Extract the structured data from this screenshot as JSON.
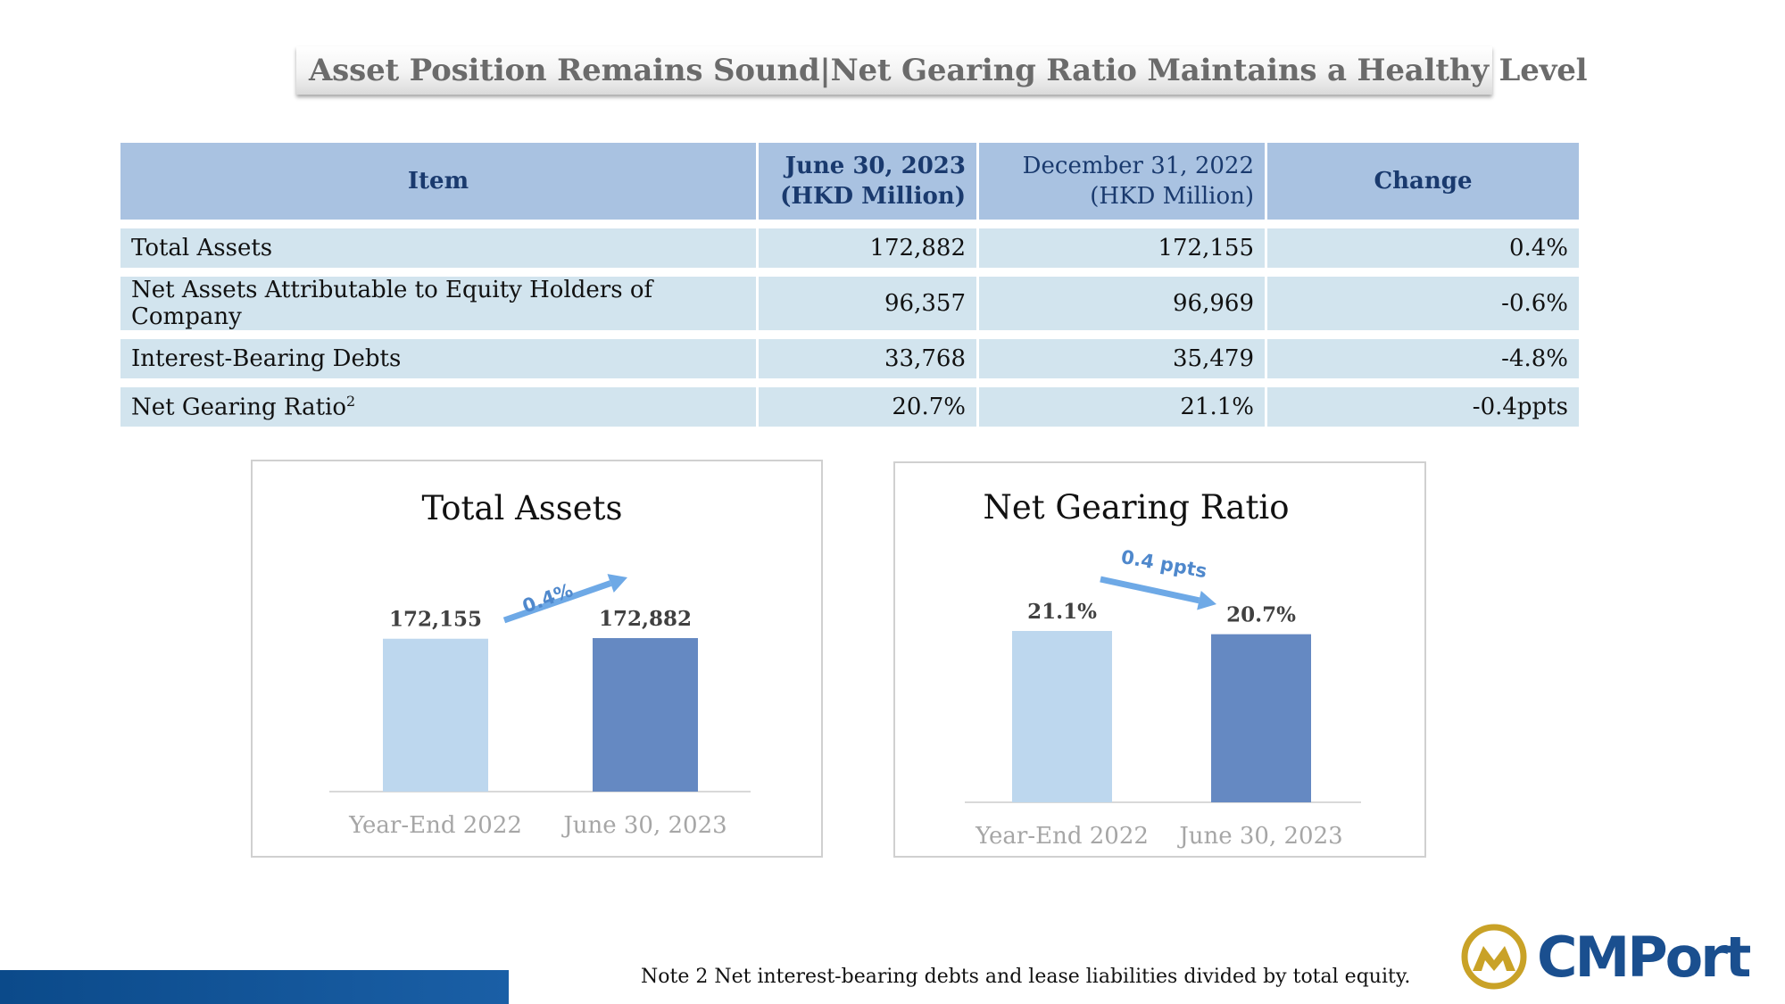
{
  "title": "Asset Position Remains Sound|Net Gearing Ratio Maintains a Healthy Level",
  "table": {
    "headers": {
      "item": "Item",
      "col1_line1": "June 30, 2023",
      "col1_line2": "(HKD Million)",
      "col2_line1": "December 31, 2022",
      "col2_line2": "(HKD Million)",
      "change": "Change"
    },
    "rows": [
      {
        "item": "Total Assets",
        "sup": "",
        "jun": "172,882",
        "dec": "172,155",
        "change": "0.4%"
      },
      {
        "item": "Net Assets Attributable to Equity Holders of Company",
        "sup": "",
        "jun": "96,357",
        "dec": "96,969",
        "change": "-0.6%"
      },
      {
        "item": "Interest-Bearing Debts",
        "sup": "",
        "jun": "33,768",
        "dec": "35,479",
        "change": "-4.8%"
      },
      {
        "item": "Net Gearing Ratio",
        "sup": "2",
        "jun": "20.7%",
        "dec": "21.1%",
        "change": "-0.4ppts"
      }
    ]
  },
  "chart_data": [
    {
      "type": "bar",
      "title": "Total Assets",
      "categories": [
        "Year-End 2022",
        "June 30, 2023"
      ],
      "values": [
        172155,
        172882
      ],
      "data_labels": [
        "172,155",
        "172,882"
      ],
      "annotation": "0.4%",
      "annotation_direction": "up",
      "colors": [
        "#bdd7ee",
        "#6589c2"
      ],
      "xlabel": "",
      "ylabel": ""
    },
    {
      "type": "bar",
      "title": "Net Gearing Ratio",
      "categories": [
        "Year-End 2022",
        "June 30, 2023"
      ],
      "values": [
        21.1,
        20.7
      ],
      "data_labels": [
        "21.1%",
        "20.7%"
      ],
      "annotation": "0.4 ppts",
      "annotation_direction": "down",
      "colors": [
        "#bdd7ee",
        "#6589c2"
      ],
      "xlabel": "",
      "ylabel": ""
    }
  ],
  "note": "Note 2  Net interest-bearing debts and lease liabilities divided by total equity.",
  "logo": {
    "text": "CMPort",
    "colors": {
      "primary": "#1a4f8f",
      "gold": "#c9a227"
    }
  }
}
